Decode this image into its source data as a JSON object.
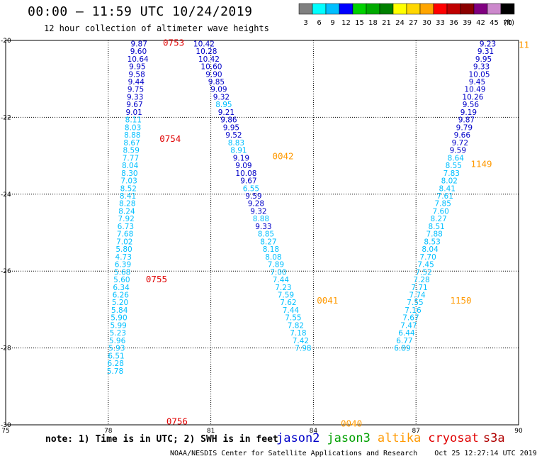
{
  "header": {
    "title": "00:00 – 11:59 UTC 10/24/2019",
    "subtitle": "12 hour collection of altimeter wave heights"
  },
  "color_scale": {
    "unit": "(ft)",
    "bins": [
      {
        "label": "3",
        "color": "#808080"
      },
      {
        "label": "6",
        "color": "#00ffff"
      },
      {
        "label": "9",
        "color": "#00bfff"
      },
      {
        "label": "12",
        "color": "#0000ff"
      },
      {
        "label": "15",
        "color": "#00d200"
      },
      {
        "label": "18",
        "color": "#00aa00"
      },
      {
        "label": "21",
        "color": "#008000"
      },
      {
        "label": "24",
        "color": "#ffff00"
      },
      {
        "label": "27",
        "color": "#ffd700"
      },
      {
        "label": "30",
        "color": "#ffa500"
      },
      {
        "label": "33",
        "color": "#ff0000"
      },
      {
        "label": "36",
        "color": "#c00000"
      },
      {
        "label": "39",
        "color": "#8b0000"
      },
      {
        "label": "42",
        "color": "#800080"
      },
      {
        "label": "45",
        "color": "#cc88cc"
      },
      {
        "label": "70",
        "color": "#000000"
      }
    ]
  },
  "footer": {
    "note": "note: 1) Time is in UTC; 2) SWH is in feet",
    "credit": "NOAA/NESDIS Center for Satellite Applications and Research    Oct 25 12:27:14 UTC 2019"
  },
  "satellites": [
    {
      "name": "jason2",
      "color": "#0000c8"
    },
    {
      "name": "jason3",
      "color": "#00a000"
    },
    {
      "name": "altika",
      "color": "#ff9900"
    },
    {
      "name": "cryosat",
      "color": "#e00000"
    },
    {
      "name": "s3a",
      "color": "#b00000"
    }
  ],
  "chart_data": {
    "type": "scatter",
    "xlim": [
      75,
      90
    ],
    "ylim": [
      -30,
      -20
    ],
    "x_ticks": [
      "75",
      "78",
      "81",
      "84",
      "87",
      "90"
    ],
    "y_ticks": [
      "-20",
      "-22",
      "-24",
      "-26",
      "-28",
      "-30"
    ],
    "grid": true,
    "colors": {
      "lt9": "#00bfff",
      "ge9": "#0000c8"
    },
    "tracks": [
      {
        "name": "track-78",
        "x_start": 78.9,
        "x_end": 78.2,
        "values": [
          "9.87",
          "9.60",
          "10.64",
          "9.95",
          "9.58",
          "9.44",
          "9.75",
          "9.33",
          "9.67",
          "9.01",
          "8.11",
          "8.03",
          "8.88",
          "8.67",
          "8.59",
          "7.77",
          "8.04",
          "8.30",
          "7.03",
          "8.52",
          "8.41",
          "8.28",
          "8.24",
          "7.92",
          "6.73",
          "7.68",
          "7.02",
          "5.80",
          "4.73",
          "6.39",
          "5.68",
          "5.60",
          "6.34",
          "6.26",
          "5.20",
          "5.84",
          "5.90",
          "5.99",
          "5.23",
          "5.96",
          "5.93",
          "6.51",
          "6.28",
          "5.78"
        ]
      },
      {
        "name": "track-81",
        "x_start": 80.8,
        "x_end": 83.7,
        "values": [
          "10.42",
          "10.28",
          "10.42",
          "10.60",
          "9.90",
          "9.85",
          "9.09",
          "9.32",
          "8.95",
          "9.21",
          "9.86",
          "9.95",
          "9.52",
          "8.83",
          "8.91",
          "9.19",
          "9.09",
          "10.08",
          "9.67",
          "6.55",
          "9.59",
          "9.28",
          "9.32",
          "8.88",
          "9.33",
          "8.85",
          "8.27",
          "8.18",
          "8.08",
          "7.89",
          "7.00",
          "7.44",
          "7.23",
          "7.59",
          "7.62",
          "7.44",
          "7.55",
          "7.82",
          "7.18",
          "7.42",
          "7.98"
        ]
      },
      {
        "name": "track-88",
        "x_start": 89.1,
        "x_end": 86.6,
        "values": [
          "9.23",
          "9.31",
          "9.95",
          "9.33",
          "10.05",
          "9.45",
          "10.49",
          "10.26",
          "9.56",
          "9.19",
          "9.87",
          "9.79",
          "9.66",
          "9.72",
          "9.59",
          "8.64",
          "8.55",
          "7.83",
          "8.02",
          "8.41",
          "7.61",
          "7.85",
          "7.60",
          "8.27",
          "8.51",
          "7.88",
          "8.53",
          "8.04",
          "7.70",
          "7.45",
          "7.52",
          "7.28",
          "7.71",
          "7.74",
          "7.55",
          "7.16",
          "7.67",
          "7.47",
          "6.44",
          "6.77",
          "6.89"
        ]
      }
    ],
    "time_labels": [
      {
        "text": "0753",
        "x": 79.6,
        "y": -20.05,
        "color": "#e00000"
      },
      {
        "text": "0754",
        "x": 79.5,
        "y": -22.55,
        "color": "#e00000"
      },
      {
        "text": "0755",
        "x": 79.1,
        "y": -26.2,
        "color": "#e00000"
      },
      {
        "text": "0756",
        "x": 79.7,
        "y": -29.9,
        "color": "#e00000"
      },
      {
        "text": "0042",
        "x": 82.8,
        "y": -23.0,
        "color": "#ff9900"
      },
      {
        "text": "0041",
        "x": 84.1,
        "y": -26.75,
        "color": "#ff9900"
      },
      {
        "text": "0040",
        "x": 84.8,
        "y": -29.95,
        "color": "#ff9900"
      },
      {
        "text": "1149",
        "x": 88.6,
        "y": -23.2,
        "color": "#ff9900"
      },
      {
        "text": "1150",
        "x": 88.0,
        "y": -26.75,
        "color": "#ff9900"
      },
      {
        "text": "11",
        "x": 90.0,
        "y": -20.1,
        "color": "#ff9900"
      }
    ]
  }
}
